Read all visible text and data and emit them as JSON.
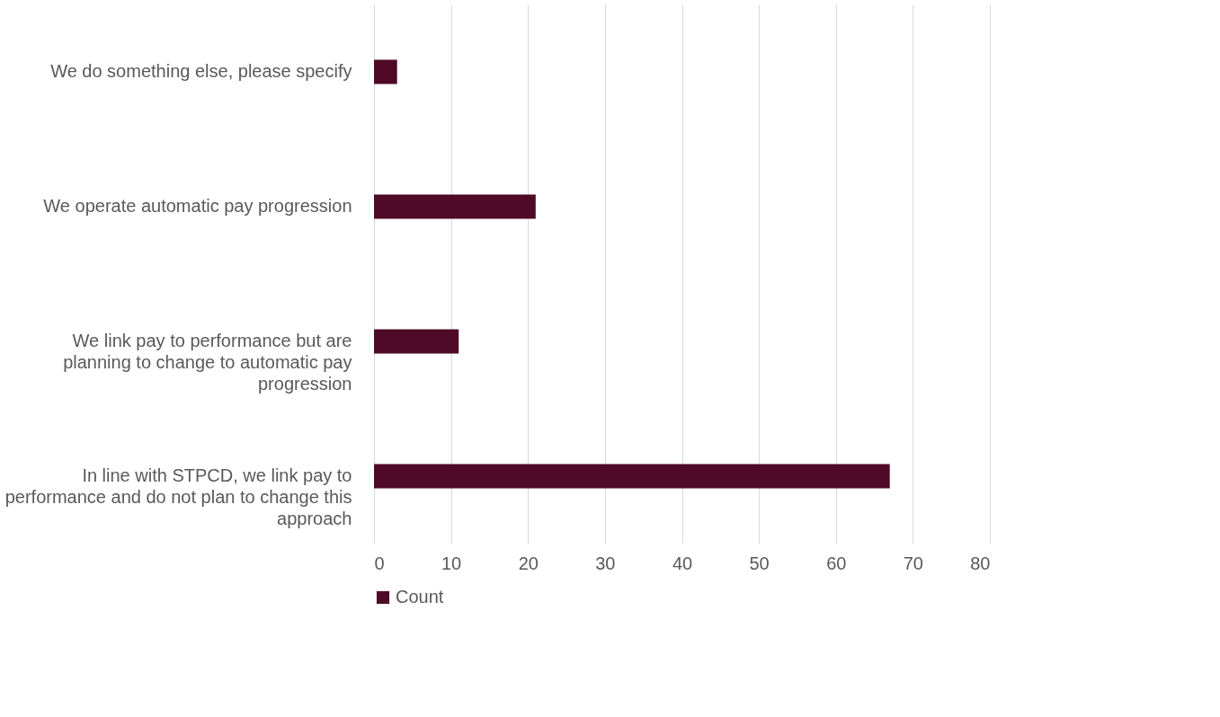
{
  "chart_data": {
    "type": "bar",
    "orientation": "horizontal",
    "categories": [
      "We do something else, please specify",
      "We operate automatic pay progression",
      "We link pay to performance but are planning to change to automatic pay progression",
      "In line with STPCD, we link pay to performance and do not plan to change this approach"
    ],
    "series": [
      {
        "name": "Count",
        "color": "#4e0a27",
        "values": [
          3,
          21,
          11,
          67
        ]
      }
    ],
    "xlim": [
      0,
      80
    ],
    "xticks": [
      0,
      10,
      20,
      30,
      40,
      50,
      60,
      70,
      80
    ],
    "grid": "x",
    "legend": "bottom"
  }
}
